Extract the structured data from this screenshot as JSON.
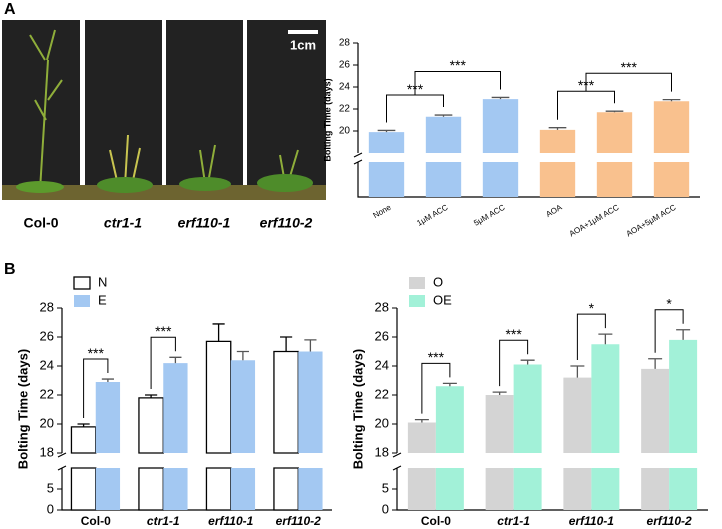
{
  "panels": [
    "A",
    "B"
  ],
  "photo": {
    "labels": [
      "Col-0",
      "ctr1-1",
      "erf110-1",
      "erf110-2"
    ],
    "label_style": [
      "normal",
      "italic",
      "italic",
      "italic"
    ],
    "scale_bar": "1cm"
  },
  "chart_data": [
    {
      "type": "bar",
      "ylabel": "Bolting Time (days)",
      "categories": [
        "None",
        "1μM ACC",
        "5μM ACC",
        "AOA",
        "AOA+1μM ACC",
        "AOA+5μM ACC"
      ],
      "xtick_rotation": 30,
      "series": [
        {
          "values": [
            19.9,
            21.3,
            22.9,
            20.1,
            21.7,
            22.7
          ],
          "errors": [
            0.15,
            0.15,
            0.15,
            0.2,
            0.1,
            0.15
          ],
          "colors": [
            "#a3c8f2",
            "#a3c8f2",
            "#a3c8f2",
            "#f9c18e",
            "#f9c18e",
            "#f9c18e"
          ]
        }
      ],
      "ylim": [
        0,
        28
      ],
      "ybreak": [
        10,
        18
      ],
      "yticks": [
        20,
        22,
        24,
        26,
        28
      ],
      "significance": [
        {
          "between": [
            0,
            1
          ],
          "label": "***"
        },
        {
          "between": [
            [
              0,
              1
            ],
            2
          ],
          "label": "***"
        },
        {
          "between": [
            3,
            4
          ],
          "label": "***"
        },
        {
          "between": [
            [
              3,
              4
            ],
            5
          ],
          "label": "***"
        }
      ]
    },
    {
      "type": "grouped_bar",
      "ylabel": "Bolting Time (days)",
      "categories": [
        "Col-0",
        "ctr1-1",
        "erf110-1",
        "erf110-2"
      ],
      "category_style": [
        "normal",
        "italic",
        "italic",
        "italic"
      ],
      "series": [
        {
          "name": "N",
          "color": "#ffffff",
          "values": [
            19.8,
            21.8,
            25.7,
            25.0
          ],
          "errors": [
            0.2,
            0.2,
            1.2,
            1.0
          ]
        },
        {
          "name": "E",
          "color": "#a3c8f2",
          "values": [
            22.9,
            24.2,
            24.4,
            25.0
          ],
          "errors": [
            0.2,
            0.4,
            0.6,
            0.8
          ]
        }
      ],
      "ylim": [
        0,
        28
      ],
      "ybreak": [
        10,
        18
      ],
      "yticks": [
        0,
        5,
        18,
        20,
        22,
        24,
        26,
        28
      ],
      "significance": [
        {
          "category": 0,
          "label": "***"
        },
        {
          "category": 1,
          "label": "***"
        }
      ]
    },
    {
      "type": "grouped_bar",
      "ylabel": "Bolting Time (days)",
      "categories": [
        "Col-0",
        "ctr1-1",
        "erf110-1",
        "erf110-2"
      ],
      "category_style": [
        "normal",
        "italic",
        "italic",
        "italic"
      ],
      "series": [
        {
          "name": "O",
          "color": "#d4d4d4",
          "values": [
            20.1,
            22.0,
            23.2,
            23.8
          ],
          "errors": [
            0.2,
            0.2,
            0.8,
            0.7
          ]
        },
        {
          "name": "OE",
          "color": "#a2f1d8",
          "values": [
            22.6,
            24.1,
            25.5,
            25.8
          ],
          "errors": [
            0.2,
            0.3,
            0.7,
            0.7
          ]
        }
      ],
      "ylim": [
        0,
        28
      ],
      "ybreak": [
        10,
        18
      ],
      "yticks": [
        0,
        5,
        18,
        20,
        22,
        24,
        26,
        28
      ],
      "significance": [
        {
          "category": 0,
          "label": "***"
        },
        {
          "category": 1,
          "label": "***"
        },
        {
          "category": 2,
          "label": "*"
        },
        {
          "category": 3,
          "label": "*"
        }
      ]
    }
  ]
}
